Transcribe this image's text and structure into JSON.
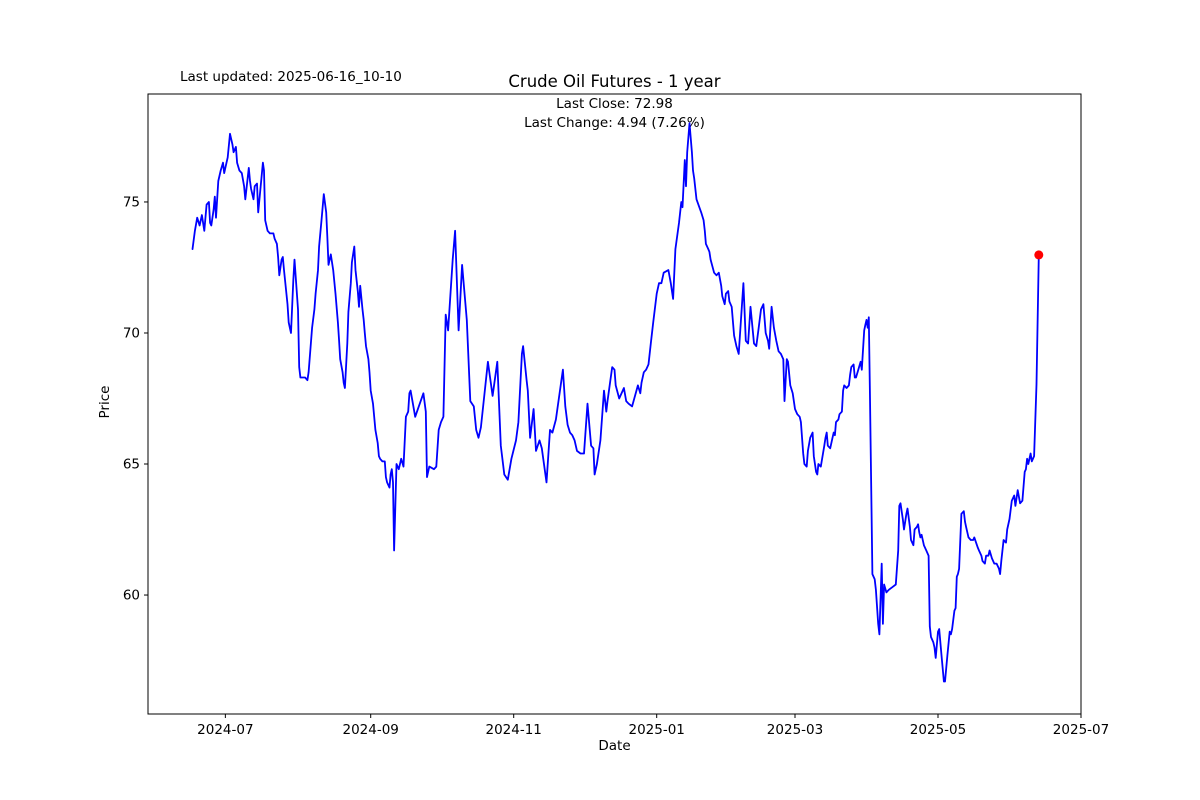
{
  "header": {
    "title": "Crude Oil Futures - 1 year",
    "last_updated": "Last updated: 2025-06-16_10-10"
  },
  "annotation": {
    "last_close": "Last Close: 72.98",
    "last_change": "Last Change: 4.94 (7.26%)"
  },
  "chart_data": {
    "type": "line",
    "title": "Crude Oil Futures - 1 year",
    "xlabel": "Date",
    "ylabel": "Price",
    "legend": "none",
    "grid": false,
    "line_color": "#0000ff",
    "marker_color": "#ff0000",
    "last_close": 72.98,
    "last_change": 4.94,
    "last_change_pct": "7.26%",
    "x_start_date": "2024-06-17",
    "x_end_date": "2025-06-13",
    "x_tick_labels": [
      "2024-07",
      "2024-09",
      "2024-11",
      "2025-01",
      "2025-03",
      "2025-05",
      "2025-07"
    ],
    "x_tick_days": [
      14,
      76,
      137,
      198,
      257,
      318,
      379
    ],
    "y_ticks": [
      60,
      65,
      70,
      75
    ],
    "xlim_days": [
      -19,
      379
    ],
    "ylim": [
      55.46,
      79.12
    ],
    "points_format": [
      "days_since_2024-06-17",
      "price_usd"
    ],
    "points": [
      [
        0,
        73.2
      ],
      [
        1,
        73.9
      ],
      [
        2,
        74.4
      ],
      [
        3,
        74.1
      ],
      [
        4,
        74.5
      ],
      [
        5,
        73.9
      ],
      [
        6,
        74.9
      ],
      [
        7,
        75.0
      ],
      [
        7.5,
        74.2
      ],
      [
        8,
        74.1
      ],
      [
        9,
        74.7
      ],
      [
        9.5,
        75.2
      ],
      [
        10,
        74.4
      ],
      [
        11,
        75.8
      ],
      [
        12,
        76.2
      ],
      [
        13,
        76.5
      ],
      [
        13.5,
        76.1
      ],
      [
        14.5,
        76.5
      ],
      [
        15,
        76.7
      ],
      [
        16,
        77.6
      ],
      [
        17,
        77.2
      ],
      [
        17.5,
        76.9
      ],
      [
        18.5,
        77.1
      ],
      [
        19,
        76.5
      ],
      [
        20,
        76.2
      ],
      [
        21,
        76.1
      ],
      [
        22,
        75.6
      ],
      [
        22.5,
        75.1
      ],
      [
        24,
        76.3
      ],
      [
        24.5,
        75.8
      ],
      [
        25,
        75.5
      ],
      [
        26,
        75.1
      ],
      [
        26.5,
        75.6
      ],
      [
        27.5,
        75.7
      ],
      [
        28,
        74.6
      ],
      [
        30,
        76.5
      ],
      [
        30.5,
        76.2
      ],
      [
        31,
        74.3
      ],
      [
        32,
        73.9
      ],
      [
        33,
        73.8
      ],
      [
        34.5,
        73.8
      ],
      [
        35,
        73.6
      ],
      [
        36,
        73.4
      ],
      [
        36.5,
        72.9
      ],
      [
        37,
        72.2
      ],
      [
        38,
        72.8
      ],
      [
        38.5,
        72.9
      ],
      [
        39,
        72.4
      ],
      [
        40.5,
        71.1
      ],
      [
        41,
        70.4
      ],
      [
        42,
        70.0
      ],
      [
        43,
        72.0
      ],
      [
        43.5,
        72.8
      ],
      [
        45,
        70.9
      ],
      [
        45.5,
        68.7
      ],
      [
        46,
        68.3
      ],
      [
        47,
        68.3
      ],
      [
        48,
        68.3
      ],
      [
        49,
        68.2
      ],
      [
        49.5,
        68.5
      ],
      [
        51,
        70.2
      ],
      [
        52,
        70.9
      ],
      [
        52.5,
        71.5
      ],
      [
        53.5,
        72.4
      ],
      [
        54,
        73.3
      ],
      [
        55,
        74.3
      ],
      [
        56,
        75.3
      ],
      [
        57,
        74.6
      ],
      [
        57.5,
        73.7
      ],
      [
        58,
        72.6
      ],
      [
        59,
        73.0
      ],
      [
        59.5,
        72.7
      ],
      [
        60,
        72.4
      ],
      [
        61,
        71.5
      ],
      [
        62,
        70.4
      ],
      [
        62.5,
        69.7
      ],
      [
        63,
        69.0
      ],
      [
        64,
        68.5
      ],
      [
        64.5,
        68.1
      ],
      [
        65,
        67.9
      ],
      [
        66,
        69.6
      ],
      [
        66.5,
        70.8
      ],
      [
        67.5,
        71.9
      ],
      [
        68,
        72.7
      ],
      [
        69,
        73.3
      ],
      [
        69.5,
        72.4
      ],
      [
        70.5,
        71.6
      ],
      [
        71,
        71.0
      ],
      [
        71.5,
        71.8
      ],
      [
        72.5,
        70.9
      ],
      [
        73,
        70.5
      ],
      [
        73.5,
        70.0
      ],
      [
        74,
        69.5
      ],
      [
        75,
        69.0
      ],
      [
        75.5,
        68.5
      ],
      [
        76,
        67.8
      ],
      [
        77,
        67.3
      ],
      [
        77.5,
        66.8
      ],
      [
        78,
        66.3
      ],
      [
        79,
        65.8
      ],
      [
        79.5,
        65.3
      ],
      [
        80,
        65.2
      ],
      [
        81,
        65.1
      ],
      [
        82,
        65.1
      ],
      [
        82.5,
        64.5
      ],
      [
        83,
        64.3
      ],
      [
        84,
        64.1
      ],
      [
        84.5,
        64.6
      ],
      [
        85,
        64.8
      ],
      [
        85.5,
        64.3
      ],
      [
        86,
        61.7
      ],
      [
        87,
        65.0
      ],
      [
        88,
        64.8
      ],
      [
        89,
        65.2
      ],
      [
        90,
        64.9
      ],
      [
        91,
        66.8
      ],
      [
        92,
        67.0
      ],
      [
        92.5,
        67.7
      ],
      [
        93,
        67.8
      ],
      [
        94,
        67.3
      ],
      [
        95,
        66.8
      ],
      [
        96.5,
        67.2
      ],
      [
        98.5,
        67.7
      ],
      [
        99.5,
        67.0
      ],
      [
        100,
        64.5
      ],
      [
        101,
        64.9
      ],
      [
        103,
        64.8
      ],
      [
        104,
        64.9
      ],
      [
        105,
        66.3
      ],
      [
        106,
        66.6
      ],
      [
        107,
        66.8
      ],
      [
        108,
        70.7
      ],
      [
        109,
        70.1
      ],
      [
        111,
        72.8
      ],
      [
        112,
        73.9
      ],
      [
        113.5,
        70.1
      ],
      [
        115,
        72.6
      ],
      [
        117,
        70.5
      ],
      [
        118.5,
        67.4
      ],
      [
        120,
        67.2
      ],
      [
        121,
        66.3
      ],
      [
        122,
        66.0
      ],
      [
        123,
        66.4
      ],
      [
        126,
        68.9
      ],
      [
        128,
        67.6
      ],
      [
        130,
        68.9
      ],
      [
        131.5,
        65.7
      ],
      [
        133,
        64.6
      ],
      [
        134.5,
        64.4
      ],
      [
        136,
        65.2
      ],
      [
        138,
        65.9
      ],
      [
        139,
        66.6
      ],
      [
        140.5,
        69.2
      ],
      [
        141,
        69.5
      ],
      [
        142.5,
        68.2
      ],
      [
        143,
        67.8
      ],
      [
        144,
        66.0
      ],
      [
        145.5,
        67.1
      ],
      [
        146.5,
        65.5
      ],
      [
        148,
        65.9
      ],
      [
        149,
        65.6
      ],
      [
        151,
        64.3
      ],
      [
        152.5,
        66.3
      ],
      [
        153.5,
        66.2
      ],
      [
        155,
        66.7
      ],
      [
        158,
        68.6
      ],
      [
        159,
        67.2
      ],
      [
        160,
        66.5
      ],
      [
        161,
        66.2
      ],
      [
        162,
        66.1
      ],
      [
        163,
        65.9
      ],
      [
        164,
        65.5
      ],
      [
        165.5,
        65.4
      ],
      [
        167,
        65.4
      ],
      [
        168.5,
        67.3
      ],
      [
        170,
        65.7
      ],
      [
        171,
        65.6
      ],
      [
        171.5,
        64.6
      ],
      [
        172.5,
        65.0
      ],
      [
        174,
        65.9
      ],
      [
        175.5,
        67.8
      ],
      [
        176.5,
        67.0
      ],
      [
        177,
        67.4
      ],
      [
        179,
        68.7
      ],
      [
        180,
        68.6
      ],
      [
        180.5,
        68.0
      ],
      [
        182,
        67.5
      ],
      [
        184,
        67.9
      ],
      [
        185,
        67.4
      ],
      [
        186,
        67.3
      ],
      [
        187.5,
        67.2
      ],
      [
        190,
        68.0
      ],
      [
        191,
        67.7
      ],
      [
        191.5,
        68.1
      ],
      [
        192.5,
        68.5
      ],
      [
        193.5,
        68.6
      ],
      [
        194.5,
        68.8
      ],
      [
        195.5,
        69.6
      ],
      [
        196.5,
        70.4
      ],
      [
        198,
        71.5
      ],
      [
        199,
        71.9
      ],
      [
        200,
        71.9
      ],
      [
        201,
        72.3
      ],
      [
        203,
        72.4
      ],
      [
        204,
        71.9
      ],
      [
        205,
        71.3
      ],
      [
        206,
        73.2
      ],
      [
        207.5,
        74.2
      ],
      [
        208.5,
        75.0
      ],
      [
        209,
        74.8
      ],
      [
        210,
        76.6
      ],
      [
        210.5,
        75.6
      ],
      [
        211,
        76.9
      ],
      [
        212,
        78.0
      ],
      [
        213,
        76.9
      ],
      [
        213.5,
        76.2
      ],
      [
        214,
        75.9
      ],
      [
        215,
        75.1
      ],
      [
        217,
        74.6
      ],
      [
        218,
        74.3
      ],
      [
        218.5,
        73.9
      ],
      [
        219,
        73.4
      ],
      [
        220,
        73.2
      ],
      [
        220.5,
        73.1
      ],
      [
        221,
        72.8
      ],
      [
        222.5,
        72.3
      ],
      [
        223.5,
        72.2
      ],
      [
        224.5,
        72.3
      ],
      [
        225.5,
        71.8
      ],
      [
        226,
        71.4
      ],
      [
        227,
        71.1
      ],
      [
        227.5,
        71.5
      ],
      [
        228.5,
        71.6
      ],
      [
        229,
        71.2
      ],
      [
        230,
        71.0
      ],
      [
        231,
        69.9
      ],
      [
        232,
        69.5
      ],
      [
        233,
        69.2
      ],
      [
        235,
        71.9
      ],
      [
        236,
        69.7
      ],
      [
        237,
        69.6
      ],
      [
        238,
        71.0
      ],
      [
        239.5,
        69.6
      ],
      [
        240.5,
        69.5
      ],
      [
        241.5,
        70.2
      ],
      [
        242.5,
        70.9
      ],
      [
        243.5,
        71.1
      ],
      [
        244.5,
        70.0
      ],
      [
        245.5,
        69.7
      ],
      [
        246,
        69.4
      ],
      [
        247,
        71.0
      ],
      [
        248,
        70.2
      ],
      [
        249,
        69.7
      ],
      [
        250,
        69.3
      ],
      [
        251,
        69.2
      ],
      [
        252,
        69.0
      ],
      [
        252.5,
        67.4
      ],
      [
        253.5,
        69.0
      ],
      [
        254,
        68.9
      ],
      [
        255,
        68.0
      ],
      [
        256,
        67.7
      ],
      [
        257,
        67.1
      ],
      [
        258,
        66.9
      ],
      [
        259,
        66.8
      ],
      [
        259.5,
        66.6
      ],
      [
        260.5,
        65.4
      ],
      [
        261,
        65.0
      ],
      [
        262,
        64.9
      ],
      [
        262.5,
        65.5
      ],
      [
        263.5,
        66.0
      ],
      [
        264.5,
        66.2
      ],
      [
        265,
        65.3
      ],
      [
        266,
        64.7
      ],
      [
        266.5,
        64.6
      ],
      [
        267,
        65.0
      ],
      [
        268,
        64.9
      ],
      [
        269.5,
        65.7
      ],
      [
        270,
        66.0
      ],
      [
        270.5,
        66.2
      ],
      [
        271,
        65.7
      ],
      [
        272,
        65.6
      ],
      [
        273,
        66.0
      ],
      [
        273.5,
        66.2
      ],
      [
        274,
        66.1
      ],
      [
        274.5,
        66.6
      ],
      [
        275.5,
        66.7
      ],
      [
        276,
        66.9
      ],
      [
        277,
        67.0
      ],
      [
        277.5,
        67.8
      ],
      [
        278,
        68.0
      ],
      [
        279,
        67.9
      ],
      [
        280,
        68.0
      ],
      [
        280.5,
        68.4
      ],
      [
        281,
        68.7
      ],
      [
        282,
        68.8
      ],
      [
        282.5,
        68.3
      ],
      [
        283,
        68.3
      ],
      [
        284,
        68.6
      ],
      [
        285,
        68.9
      ],
      [
        285.5,
        68.6
      ],
      [
        286.5,
        70.1
      ],
      [
        287,
        70.3
      ],
      [
        287.5,
        70.5
      ],
      [
        288,
        70.2
      ],
      [
        288.5,
        70.6
      ],
      [
        289,
        67.5
      ],
      [
        290,
        60.8
      ],
      [
        291,
        60.6
      ],
      [
        291.5,
        60.2
      ],
      [
        292.5,
        58.9
      ],
      [
        293,
        58.5
      ],
      [
        294,
        61.2
      ],
      [
        294.5,
        58.9
      ],
      [
        295,
        60.4
      ],
      [
        296,
        60.1
      ],
      [
        297,
        60.2
      ],
      [
        298.5,
        60.3
      ],
      [
        300,
        60.4
      ],
      [
        301,
        61.7
      ],
      [
        301.5,
        63.4
      ],
      [
        302,
        63.5
      ],
      [
        303,
        62.9
      ],
      [
        303.5,
        62.5
      ],
      [
        304.5,
        63.1
      ],
      [
        305,
        63.3
      ],
      [
        306,
        62.6
      ],
      [
        306.5,
        62.1
      ],
      [
        307.5,
        61.9
      ],
      [
        308,
        62.5
      ],
      [
        309,
        62.6
      ],
      [
        309.5,
        62.7
      ],
      [
        310,
        62.4
      ],
      [
        310.5,
        62.2
      ],
      [
        311,
        62.3
      ],
      [
        312,
        61.9
      ],
      [
        313,
        61.7
      ],
      [
        314,
        61.5
      ],
      [
        314.5,
        58.8
      ],
      [
        315,
        58.4
      ],
      [
        316,
        58.2
      ],
      [
        316.5,
        58.0
      ],
      [
        317,
        57.6
      ],
      [
        318,
        58.6
      ],
      [
        318.5,
        58.7
      ],
      [
        319.5,
        57.7
      ],
      [
        320,
        57.2
      ],
      [
        320.5,
        56.7
      ],
      [
        321,
        56.7
      ],
      [
        322,
        57.7
      ],
      [
        323,
        58.6
      ],
      [
        323.5,
        58.5
      ],
      [
        324,
        58.7
      ],
      [
        325,
        59.4
      ],
      [
        325.5,
        59.5
      ],
      [
        326,
        60.7
      ],
      [
        326.5,
        60.8
      ],
      [
        327,
        61.0
      ],
      [
        328,
        63.1
      ],
      [
        329,
        63.2
      ],
      [
        329.5,
        62.8
      ],
      [
        330,
        62.6
      ],
      [
        331,
        62.2
      ],
      [
        332,
        62.1
      ],
      [
        333,
        62.1
      ],
      [
        333.5,
        62.2
      ],
      [
        335,
        61.8
      ],
      [
        335.5,
        61.7
      ],
      [
        336.5,
        61.5
      ],
      [
        337,
        61.3
      ],
      [
        338,
        61.2
      ],
      [
        338.5,
        61.5
      ],
      [
        339.5,
        61.5
      ],
      [
        340,
        61.7
      ],
      [
        341,
        61.4
      ],
      [
        342,
        61.2
      ],
      [
        343,
        61.2
      ],
      [
        344,
        61.0
      ],
      [
        344.5,
        60.8
      ],
      [
        345,
        61.3
      ],
      [
        346,
        62.1
      ],
      [
        347,
        62.0
      ],
      [
        347.5,
        62.5
      ],
      [
        348.5,
        62.9
      ],
      [
        349.5,
        63.6
      ],
      [
        350.5,
        63.8
      ],
      [
        351,
        63.4
      ],
      [
        352,
        64.0
      ],
      [
        353,
        63.5
      ],
      [
        354,
        63.6
      ],
      [
        355,
        64.7
      ],
      [
        355.5,
        64.8
      ],
      [
        356,
        65.2
      ],
      [
        356.5,
        65.0
      ],
      [
        357.5,
        65.4
      ],
      [
        358,
        65.1
      ],
      [
        359,
        65.3
      ],
      [
        360,
        68.04
      ],
      [
        361,
        72.98
      ]
    ]
  }
}
